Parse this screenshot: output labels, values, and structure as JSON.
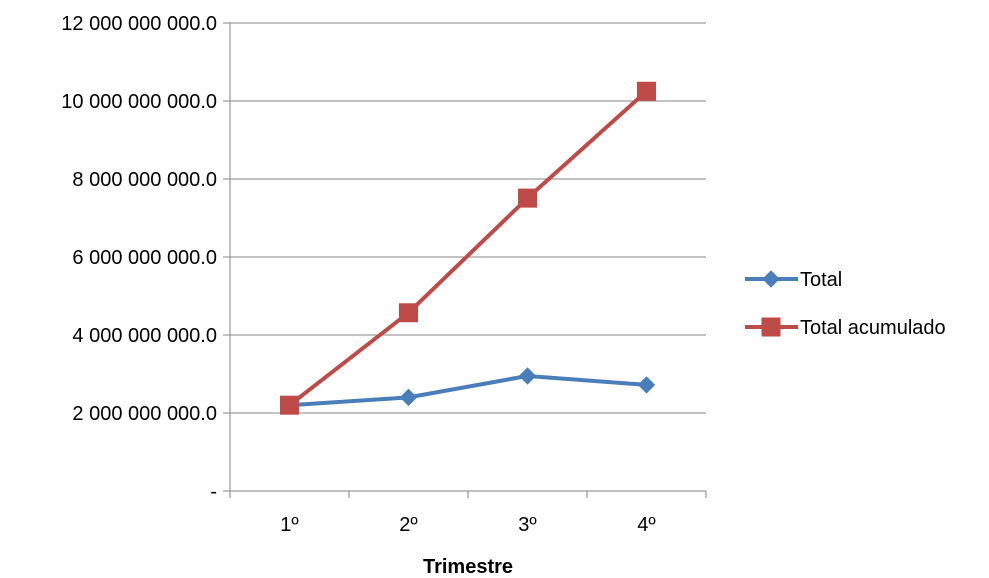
{
  "chart_data": {
    "type": "line",
    "title": "",
    "xlabel": "Trimestre",
    "ylabel": "",
    "categories": [
      "1º",
      "2º",
      "3º",
      "4º"
    ],
    "ylim": [
      0,
      12000000000
    ],
    "yticks": [
      0,
      2000000000,
      4000000000,
      6000000000,
      8000000000,
      10000000000,
      12000000000
    ],
    "ytick_labels": [
      "-",
      "2 000 000 000.0",
      "4 000 000 000.0",
      "6 000 000 000.0",
      "8 000 000 000.0",
      "10 000 000 000.0",
      "12 000 000 000.0"
    ],
    "grid": true,
    "legend_position": "right",
    "series": [
      {
        "name": "Total",
        "values": [
          2200000000,
          2400000000,
          2950000000,
          2720000000
        ],
        "color": "#4A7EBB",
        "marker": "diamond"
      },
      {
        "name": "Total acumulado",
        "values": [
          2200000000,
          4570000000,
          7510000000,
          10250000000
        ],
        "color": "#BE4B48",
        "marker": "square"
      }
    ]
  }
}
